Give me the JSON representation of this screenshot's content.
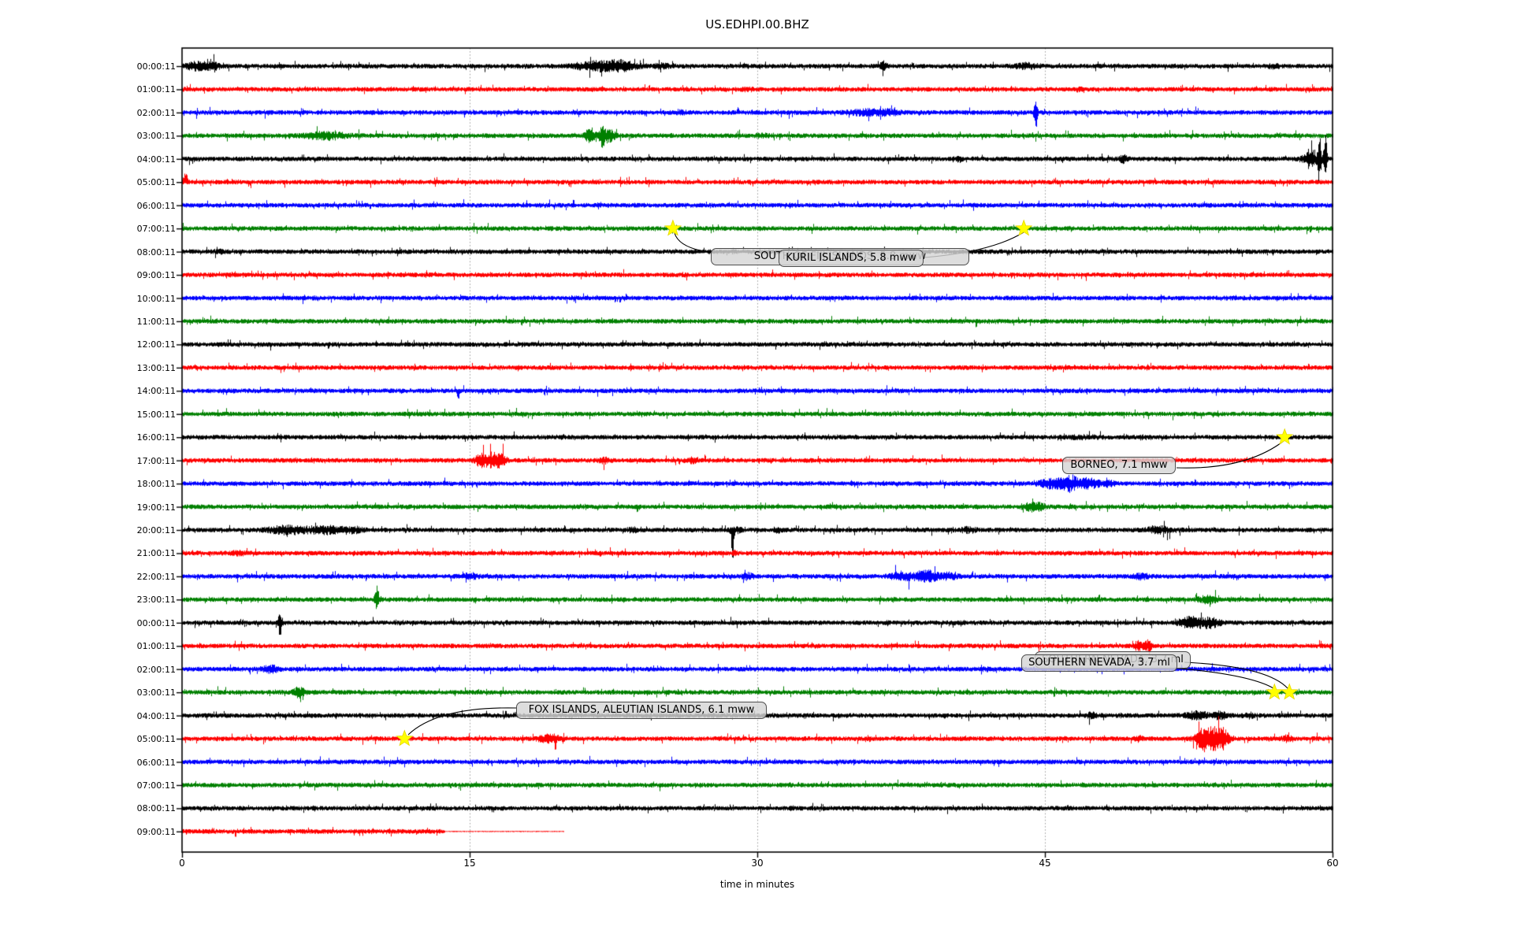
{
  "title": "US.EDHPI.00.BHZ",
  "chart_data": {
    "type": "line",
    "subtype": "seismogram-dayplot",
    "station": "US.EDHPI.00.BHZ",
    "xlabel": "time in minutes",
    "xlim": [
      0,
      60
    ],
    "x_ticks": [
      0,
      15,
      30,
      45,
      60
    ],
    "grid_minutes": [
      15,
      30,
      45
    ],
    "grid_style": "dotted-gray",
    "trace_colors": [
      "#000000",
      "#ff0000",
      "#0000ff",
      "#008000"
    ],
    "star_color": "#ffff00",
    "annotation_bg": "#d6d6d6",
    "annotation_border": "#4d4d4d",
    "rows": [
      {
        "label": "00:00:11",
        "bursts": [
          [
            0.8,
            0.6,
            2.4
          ],
          [
            1.6,
            0.4,
            2.0
          ],
          [
            21.7,
            1.2,
            2.6
          ],
          [
            23.0,
            0.8,
            2.4
          ],
          [
            25.0,
            0.4,
            1.7
          ],
          [
            36.6,
            0.15,
            2.6
          ],
          [
            44.0,
            0.6,
            1.9
          ],
          [
            56.9,
            0.3,
            1.6
          ]
        ]
      },
      {
        "label": "01:00:11",
        "bursts": [
          [
            29.5,
            0.3,
            1.4
          ],
          [
            46.8,
            0.2,
            1.5
          ]
        ]
      },
      {
        "label": "02:00:11",
        "bursts": [
          [
            26.0,
            0.3,
            1.5
          ],
          [
            35.8,
            1.0,
            2.0
          ],
          [
            37.0,
            0.4,
            1.8
          ],
          [
            44.5,
            0.08,
            9.0
          ]
        ]
      },
      {
        "label": "03:00:11",
        "bursts": [
          [
            7.5,
            1.0,
            2.3
          ],
          [
            21.3,
            0.25,
            4.5
          ],
          [
            21.9,
            0.15,
            5.0
          ],
          [
            22.3,
            0.3,
            3.0
          ],
          [
            30.2,
            0.3,
            1.6
          ]
        ]
      },
      {
        "label": "04:00:11",
        "bursts": [
          [
            40.5,
            0.15,
            1.8
          ],
          [
            49.1,
            0.2,
            2.5
          ],
          [
            58.8,
            0.3,
            5.0
          ],
          [
            59.3,
            0.08,
            12.0
          ],
          [
            59.6,
            0.08,
            14.0
          ]
        ]
      },
      {
        "label": "05:00:11",
        "bursts": [
          [
            0.15,
            0.1,
            7.0,
            1
          ]
        ]
      },
      {
        "label": "06:00:11",
        "bursts": []
      },
      {
        "label": "07:00:11",
        "bursts": []
      },
      {
        "label": "08:00:11",
        "bursts": [
          [
            2.0,
            0.3,
            1.4
          ]
        ]
      },
      {
        "label": "09:00:11",
        "bursts": []
      },
      {
        "label": "10:00:11",
        "bursts": []
      },
      {
        "label": "11:00:11",
        "bursts": []
      },
      {
        "label": "12:00:11",
        "bursts": []
      },
      {
        "label": "13:00:11",
        "bursts": []
      },
      {
        "label": "14:00:11",
        "bursts": [
          [
            14.4,
            0.08,
            5.0,
            -1
          ]
        ]
      },
      {
        "label": "15:00:11",
        "bursts": []
      },
      {
        "label": "16:00:11",
        "bursts": [
          [
            47.0,
            0.8,
            1.4
          ]
        ]
      },
      {
        "label": "17:00:11",
        "bursts": [
          [
            15.5,
            0.25,
            2.5
          ],
          [
            16.1,
            0.5,
            3.8
          ],
          [
            16.6,
            0.3,
            2.5
          ],
          [
            22.0,
            0.25,
            1.8
          ],
          [
            26.6,
            0.25,
            1.8
          ]
        ]
      },
      {
        "label": "18:00:11",
        "bursts": [
          [
            45.3,
            0.6,
            2.5
          ],
          [
            46.3,
            0.5,
            4.0
          ],
          [
            47.3,
            0.5,
            2.6
          ],
          [
            48.3,
            0.4,
            1.8
          ]
        ]
      },
      {
        "label": "19:00:11",
        "bursts": [
          [
            44.3,
            0.4,
            2.8
          ],
          [
            44.8,
            0.2,
            2.0
          ]
        ]
      },
      {
        "label": "20:00:11",
        "bursts": [
          [
            5.5,
            1.0,
            2.4
          ],
          [
            7.5,
            1.0,
            2.2
          ],
          [
            9.0,
            0.5,
            1.8
          ],
          [
            23.5,
            0.3,
            1.6
          ],
          [
            28.7,
            0.08,
            13.0,
            -1
          ],
          [
            28.9,
            0.3,
            1.8
          ],
          [
            31.1,
            0.2,
            1.7
          ],
          [
            41.0,
            0.4,
            1.8
          ],
          [
            51.0,
            0.7,
            2.0
          ]
        ]
      },
      {
        "label": "21:00:11",
        "bursts": [
          [
            3.0,
            0.4,
            1.5
          ],
          [
            28.8,
            0.1,
            2.0
          ]
        ]
      },
      {
        "label": "22:00:11",
        "bursts": [
          [
            15.0,
            0.4,
            1.8
          ],
          [
            29.5,
            0.3,
            2.0
          ],
          [
            37.5,
            0.5,
            2.6
          ],
          [
            38.8,
            0.7,
            3.0
          ],
          [
            40.0,
            0.4,
            2.0
          ],
          [
            50.0,
            0.4,
            1.8
          ]
        ]
      },
      {
        "label": "23:00:11",
        "bursts": [
          [
            10.15,
            0.1,
            7.0
          ],
          [
            53.5,
            0.5,
            2.2
          ]
        ]
      },
      {
        "label": "00:00:11",
        "bursts": [
          [
            5.1,
            0.1,
            6.0
          ],
          [
            52.6,
            0.6,
            3.2
          ],
          [
            53.6,
            0.5,
            2.6
          ]
        ]
      },
      {
        "label": "01:00:11",
        "bursts": [
          [
            49.9,
            0.3,
            2.6
          ],
          [
            50.4,
            0.15,
            3.2
          ]
        ]
      },
      {
        "label": "02:00:11",
        "bursts": [
          [
            4.6,
            0.4,
            2.2
          ],
          [
            42.0,
            0.3,
            1.4
          ]
        ]
      },
      {
        "label": "03:00:11",
        "bursts": [
          [
            6.1,
            0.3,
            2.8
          ]
        ]
      },
      {
        "label": "04:00:11",
        "bursts": [
          [
            47.4,
            0.3,
            2.0
          ],
          [
            52.9,
            0.6,
            2.4
          ],
          [
            54.1,
            0.4,
            2.2
          ],
          [
            55.6,
            0.3,
            1.8
          ]
        ]
      },
      {
        "label": "05:00:11",
        "bursts": [
          [
            19.2,
            0.6,
            2.4
          ],
          [
            49.9,
            0.2,
            1.8
          ],
          [
            53.2,
            0.4,
            4.0
          ],
          [
            53.8,
            0.5,
            5.0
          ],
          [
            54.3,
            0.3,
            3.5
          ],
          [
            57.6,
            0.25,
            2.0
          ]
        ]
      },
      {
        "label": "06:00:11",
        "bursts": []
      },
      {
        "label": "07:00:11",
        "bursts": []
      },
      {
        "label": "08:00:11",
        "bursts": []
      },
      {
        "label": "09:00:11",
        "bursts": [],
        "flat_after": 13.7,
        "end_min": 19.9
      }
    ],
    "events": [
      {
        "label": "SOUTH OF FIJI ISLANDS, 5.8 mww",
        "row": 7,
        "minute": 25.6,
        "note": "label mostly hidden behind KURIL ISLANDS label"
      },
      {
        "label": "KURIL ISLANDS, 5.8 mww",
        "row": 7,
        "minute": 43.9
      },
      {
        "label": "BORNEO, 7.1 mww",
        "row": 16,
        "minute": 57.5
      },
      {
        "label": "SOUTHERN NEVADA, 3.7 ml",
        "row": 27,
        "minute": 57.75,
        "note": "label mostly hidden behind other SOUTHERN NEVADA label"
      },
      {
        "label": "SOUTHERN NEVADA, 3.7 ml",
        "row": 27,
        "minute": 56.97
      },
      {
        "label": "FOX ISLANDS, ALEUTIAN ISLANDS, 6.1 mww",
        "row": 29,
        "minute": 11.6
      }
    ]
  }
}
